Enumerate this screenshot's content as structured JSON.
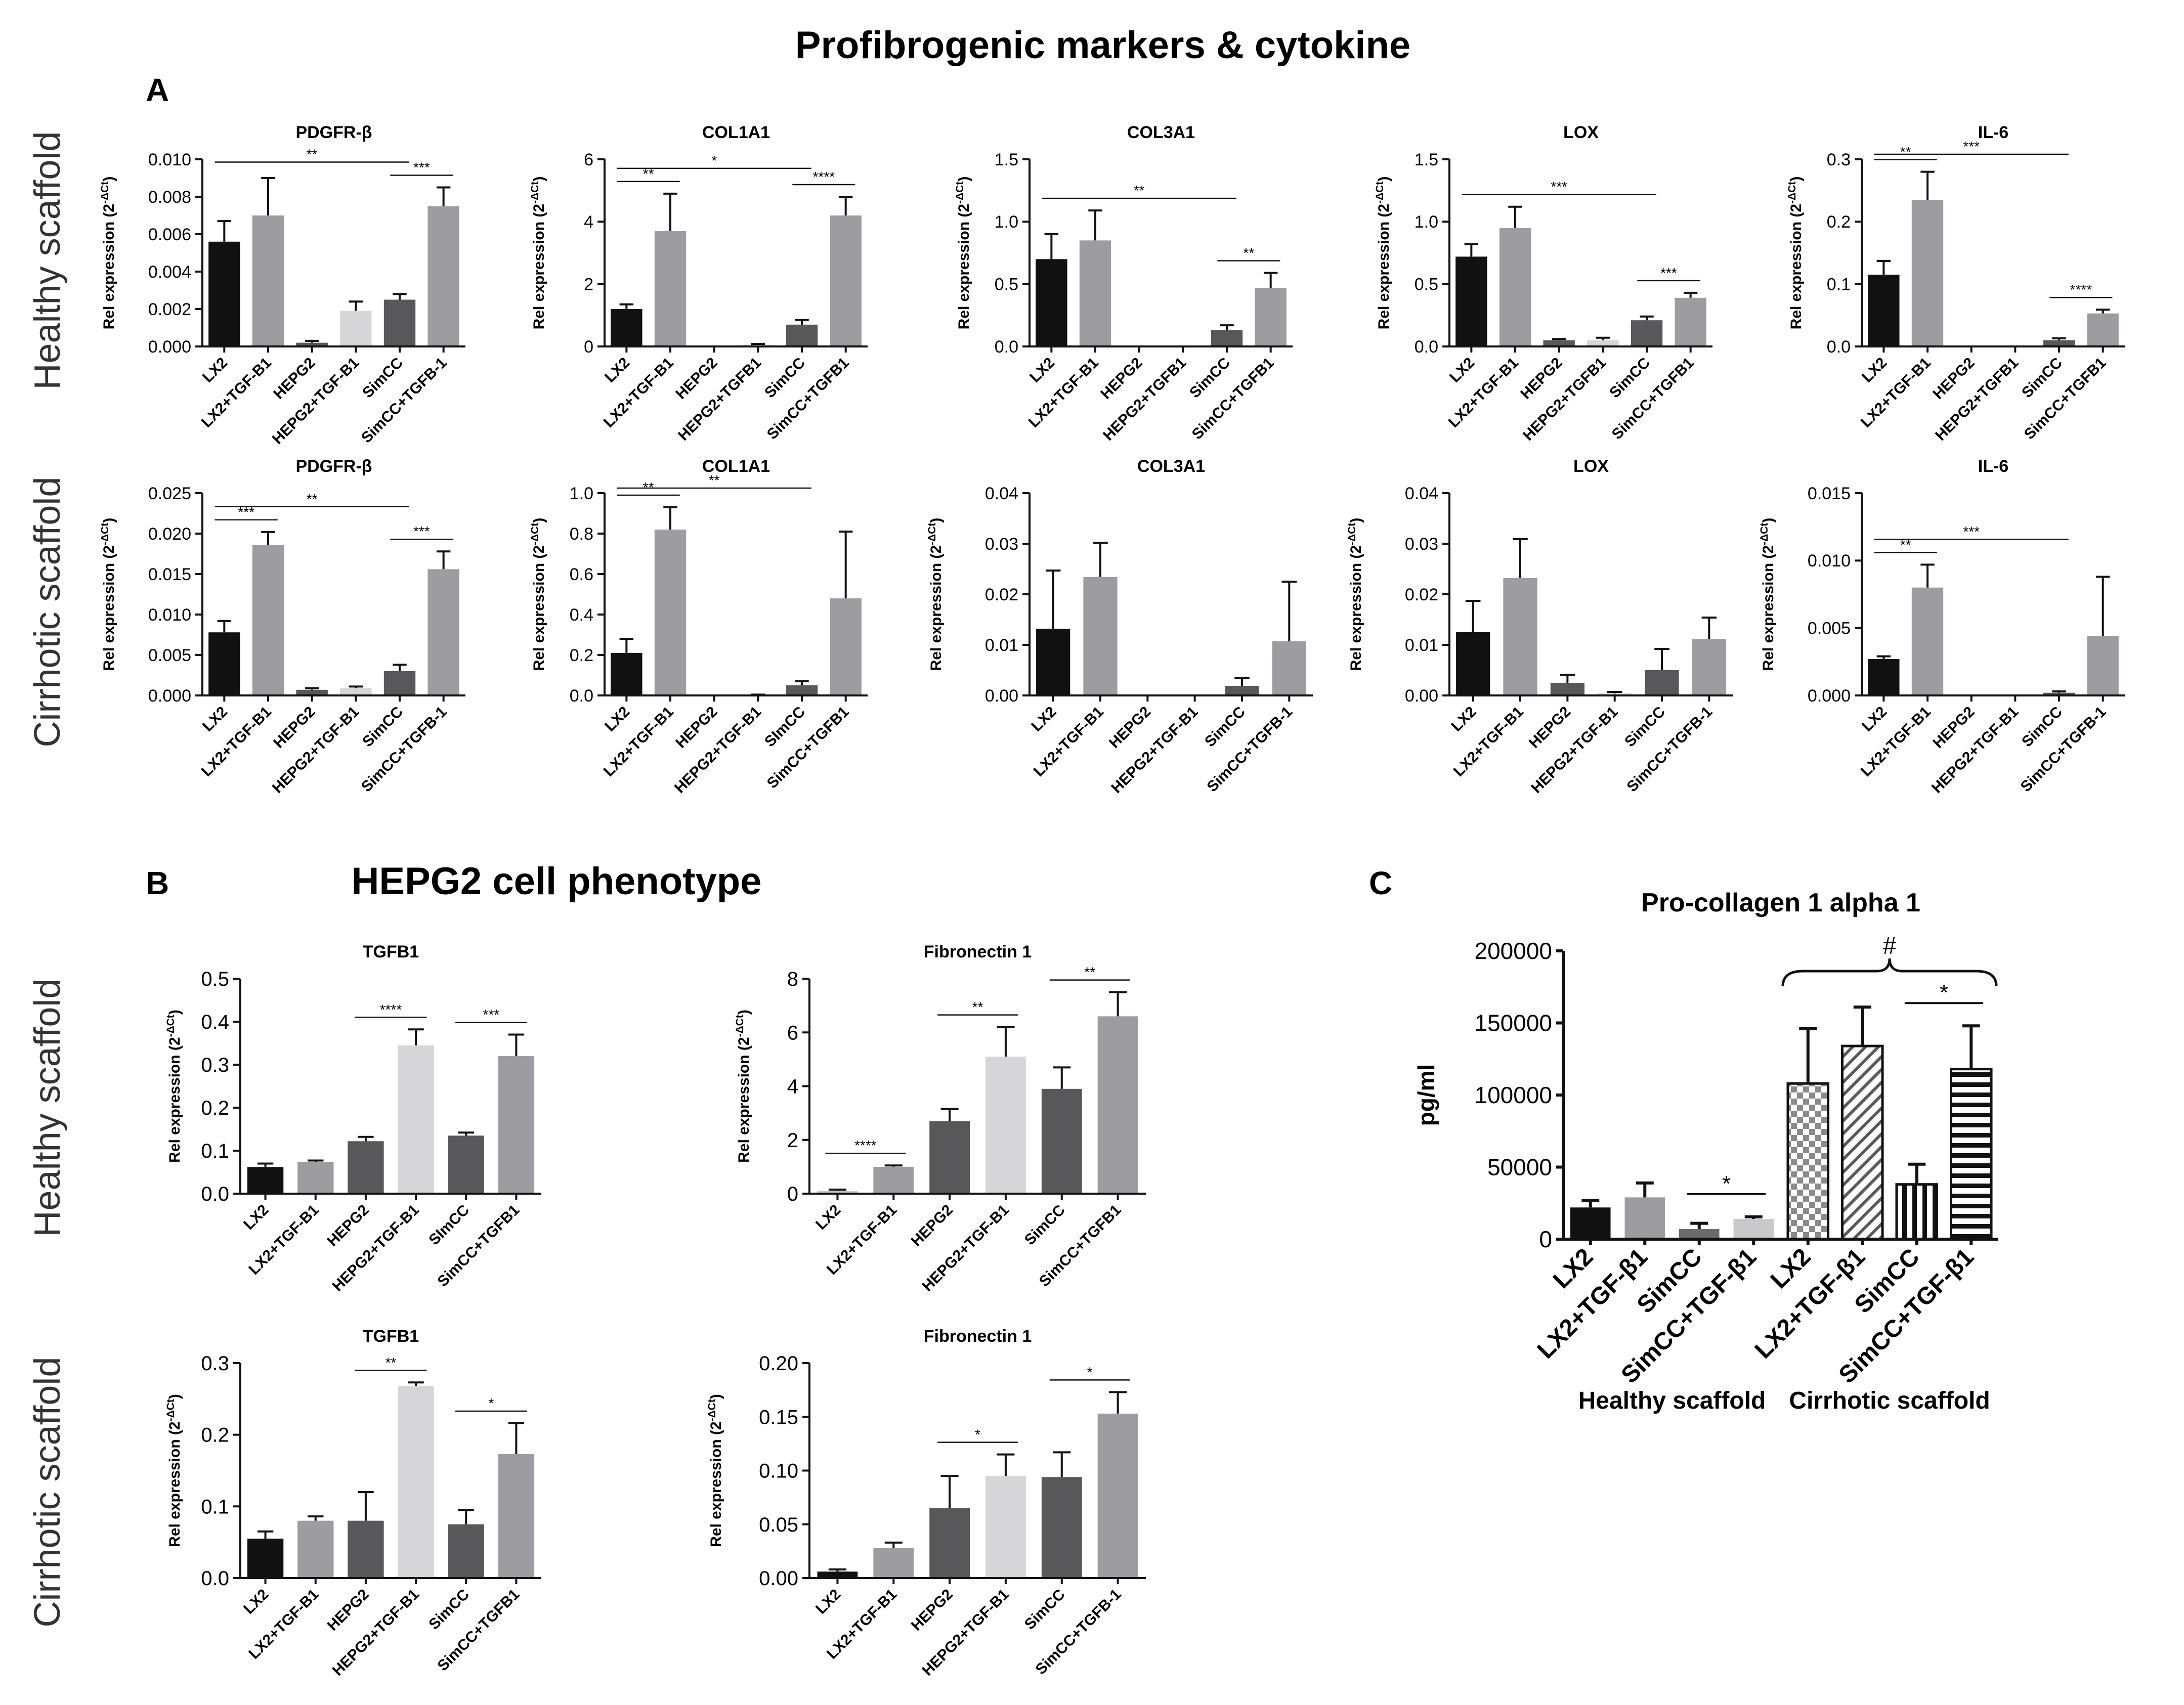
{
  "page_title": "Profibrogenic markers & cytokine",
  "section_b_title": "HEPG2 cell phenotype",
  "panel_letters": {
    "a": "A",
    "b": "B",
    "c": "C"
  },
  "row_labels": {
    "healthy": "Healthy scaffold",
    "cirrhotic": "Cirrhotic scaffold"
  },
  "group_labels": {
    "healthy": "Healthy scaffold",
    "cirrhotic": "Cirrhotic scaffold"
  },
  "colors": {
    "black": "#111111",
    "grey": "#9d9da1",
    "dark": "#58585b",
    "light": "#d6d6d8",
    "faint": "#c9c9cb"
  },
  "chart_data": [
    {
      "id": "A_h_pdgfrb",
      "type": "bar",
      "title": "PDGFR-β",
      "ylabel": "Rel expression (2^-ΔCt)",
      "ylim": [
        0,
        0.01
      ],
      "yticks": [
        "0.000",
        "0.002",
        "0.004",
        "0.006",
        "0.008",
        "0.010"
      ],
      "categories": [
        "LX2",
        "LX2+TGF-B1",
        "HEPG2",
        "HEPG2+TGF-B1",
        "SimCC",
        "SimCC+TGFB-1"
      ],
      "values": [
        0.0056,
        0.007,
        0.0002,
        0.0019,
        0.0025,
        0.0075
      ],
      "errors": [
        0.0011,
        0.002,
        0.0001,
        0.0005,
        0.0003,
        0.001
      ],
      "colors": [
        "#111111",
        "#9d9da1",
        "#58585b",
        "#d6d6d8",
        "#58585b",
        "#9d9da1"
      ],
      "sig": [
        {
          "from": 0,
          "to": 4,
          "label": "**"
        },
        {
          "from": 4,
          "to": 5,
          "label": "***"
        }
      ]
    },
    {
      "id": "A_h_col1a1",
      "type": "bar",
      "title": "COL1A1",
      "ylabel": "Rel expression (2^-ΔCt)",
      "ylim": [
        0,
        6
      ],
      "yticks": [
        "0",
        "2",
        "4",
        "6"
      ],
      "categories": [
        "LX2",
        "LX2+TGF-B1",
        "HEPG2",
        "HEPG2+TGFB1",
        "SimCC",
        "SimCC+TGFB1"
      ],
      "values": [
        1.2,
        3.7,
        0,
        0.05,
        0.7,
        4.2
      ],
      "errors": [
        0.15,
        1.2,
        0,
        0.03,
        0.15,
        0.6
      ],
      "colors": [
        "#111111",
        "#9d9da1",
        "#58585b",
        "#d6d6d8",
        "#58585b",
        "#9d9da1"
      ],
      "sig": [
        {
          "from": 0,
          "to": 1,
          "label": "**"
        },
        {
          "from": 0,
          "to": 4,
          "label": "*"
        },
        {
          "from": 4,
          "to": 5,
          "label": "****"
        }
      ]
    },
    {
      "id": "A_h_col3a1",
      "type": "bar",
      "title": "COL3A1",
      "ylabel": "Rel expression (2^-ΔCt)",
      "ylim": [
        0,
        1.5
      ],
      "yticks": [
        "0.0",
        "0.5",
        "1.0",
        "1.5"
      ],
      "categories": [
        "LX2",
        "LX2+TGF-B1",
        "HEPG2",
        "HEPG2+TGFB1",
        "SimCC",
        "SimCC+TGFB1"
      ],
      "values": [
        0.7,
        0.85,
        0,
        0,
        0.13,
        0.47
      ],
      "errors": [
        0.2,
        0.24,
        0,
        0,
        0.04,
        0.12
      ],
      "colors": [
        "#111111",
        "#9d9da1",
        "#58585b",
        "#d6d6d8",
        "#58585b",
        "#9d9da1"
      ],
      "sig": [
        {
          "from": 0,
          "to": 4,
          "label": "**"
        },
        {
          "from": 4,
          "to": 5,
          "label": "**"
        }
      ]
    },
    {
      "id": "A_h_lox",
      "type": "bar",
      "title": "LOX",
      "ylabel": "Rel expression (2^-ΔCt)",
      "ylim": [
        0,
        1.5
      ],
      "yticks": [
        "0.0",
        "0.5",
        "1.0",
        "1.5"
      ],
      "categories": [
        "LX2",
        "LX2+TGF-B1",
        "HEPG2",
        "HEPG2+TGFB1",
        "SimCC",
        "SimCC+TGFB1"
      ],
      "values": [
        0.72,
        0.95,
        0.05,
        0.05,
        0.21,
        0.39
      ],
      "errors": [
        0.1,
        0.17,
        0.01,
        0.02,
        0.03,
        0.04
      ],
      "colors": [
        "#111111",
        "#9d9da1",
        "#58585b",
        "#d6d6d8",
        "#58585b",
        "#9d9da1"
      ],
      "sig": [
        {
          "from": 0,
          "to": 4,
          "label": "***"
        },
        {
          "from": 4,
          "to": 5,
          "label": "***"
        }
      ]
    },
    {
      "id": "A_h_il6",
      "type": "bar",
      "title": "IL-6",
      "ylabel": "Rel expression (2^-ΔCt)",
      "ylim": [
        0,
        0.3
      ],
      "yticks": [
        "0.0",
        "0.1",
        "0.2",
        "0.3"
      ],
      "categories": [
        "LX2",
        "LX2+TGF-B1",
        "HEPG2",
        "HEPG2+TGFB1",
        "SimCC",
        "SimCC+TGFB1"
      ],
      "values": [
        0.115,
        0.235,
        0,
        0,
        0.01,
        0.053
      ],
      "errors": [
        0.022,
        0.045,
        0,
        0,
        0.003,
        0.006
      ],
      "colors": [
        "#111111",
        "#9d9da1",
        "#58585b",
        "#d6d6d8",
        "#58585b",
        "#9d9da1"
      ],
      "sig": [
        {
          "from": 0,
          "to": 1,
          "label": "**"
        },
        {
          "from": 0,
          "to": 4,
          "label": "***"
        },
        {
          "from": 4,
          "to": 5,
          "label": "****"
        }
      ]
    },
    {
      "id": "A_c_pdgfrb",
      "type": "bar",
      "title": "PDGFR-β",
      "ylabel": "Rel expression (2^-ΔCt)",
      "ylim": [
        0,
        0.025
      ],
      "yticks": [
        "0.000",
        "0.005",
        "0.010",
        "0.015",
        "0.020",
        "0.025"
      ],
      "categories": [
        "LX2",
        "LX2+TGF-B1",
        "HEPG2",
        "HEPG2+TGF-B1",
        "SimCC",
        "SimCC+TGFB-1"
      ],
      "values": [
        0.0078,
        0.0186,
        0.0007,
        0.0009,
        0.003,
        0.0156
      ],
      "errors": [
        0.0014,
        0.0016,
        0.0002,
        0.0002,
        0.0008,
        0.0022
      ],
      "colors": [
        "#111111",
        "#9d9da1",
        "#58585b",
        "#d6d6d8",
        "#58585b",
        "#9d9da1"
      ],
      "sig": [
        {
          "from": 0,
          "to": 1,
          "label": "***"
        },
        {
          "from": 0,
          "to": 4,
          "label": "**"
        },
        {
          "from": 4,
          "to": 5,
          "label": "***"
        }
      ]
    },
    {
      "id": "A_c_col1a1",
      "type": "bar",
      "title": "COL1A1",
      "ylabel": "Rel expression (2^-ΔCt)",
      "ylim": [
        0,
        1
      ],
      "yticks": [
        "0.0",
        "0.2",
        "0.4",
        "0.6",
        "0.8",
        "1.0"
      ],
      "categories": [
        "LX2",
        "LX2+TGF-B1",
        "HEPG2",
        "HEPG2+TGF-B1",
        "SImCC",
        "SimCC+TGFB1"
      ],
      "values": [
        0.21,
        0.82,
        0,
        0.002,
        0.05,
        0.48
      ],
      "errors": [
        0.07,
        0.11,
        0,
        0.002,
        0.02,
        0.33
      ],
      "colors": [
        "#111111",
        "#9d9da1",
        "#58585b",
        "#d6d6d8",
        "#58585b",
        "#9d9da1"
      ],
      "sig": [
        {
          "from": 0,
          "to": 1,
          "label": "**"
        },
        {
          "from": 0,
          "to": 4,
          "label": "**"
        }
      ]
    },
    {
      "id": "A_c_col3a1",
      "type": "bar",
      "title": "COL3A1",
      "ylabel": "Rel expression (2^-ΔCt)",
      "ylim": [
        0,
        0.04
      ],
      "yticks": [
        "0.00",
        "0.01",
        "0.02",
        "0.03",
        "0.04"
      ],
      "categories": [
        "LX2",
        "LX2+TGF-B1",
        "HEPG2",
        "HEPG2+TGF-B1",
        "SimCC",
        "SimCC+TGFB-1"
      ],
      "values": [
        0.0132,
        0.0234,
        0,
        0,
        0.0019,
        0.0107
      ],
      "errors": [
        0.0115,
        0.0068,
        0,
        0,
        0.0015,
        0.0118
      ],
      "colors": [
        "#111111",
        "#9d9da1",
        "#58585b",
        "#d6d6d8",
        "#58585b",
        "#9d9da1"
      ],
      "sig": []
    },
    {
      "id": "A_c_lox",
      "type": "bar",
      "title": "LOX",
      "ylabel": "Rel expression (2^-ΔCt)",
      "ylim": [
        0,
        0.04
      ],
      "yticks": [
        "0.00",
        "0.01",
        "0.02",
        "0.03",
        "0.04"
      ],
      "categories": [
        "LX2",
        "LX2+TGF-B1",
        "HEPG2",
        "HEPG2+TGF-B1",
        "SimCC",
        "SimCC+TGFB-1"
      ],
      "values": [
        0.0125,
        0.0232,
        0.0025,
        0.0004,
        0.005,
        0.0112
      ],
      "errors": [
        0.0062,
        0.0077,
        0.0016,
        0.0003,
        0.0042,
        0.0042
      ],
      "colors": [
        "#111111",
        "#9d9da1",
        "#58585b",
        "#d6d6d8",
        "#58585b",
        "#9d9da1"
      ],
      "sig": []
    },
    {
      "id": "A_c_il6",
      "type": "bar",
      "title": "IL-6",
      "ylabel": "Rel expression (2^-ΔCt)",
      "ylim": [
        0,
        0.015
      ],
      "yticks": [
        "0.000",
        "0.005",
        "0.010",
        "0.015"
      ],
      "categories": [
        "LX2",
        "LX2+TGF-B1",
        "HEPG2",
        "HEPG2+TGF-B1",
        "SimCC",
        "SimCC+TGFB-1"
      ],
      "values": [
        0.0027,
        0.008,
        0,
        0,
        0.0002,
        0.0044
      ],
      "errors": [
        0.0002,
        0.0017,
        0,
        0,
        0.0001,
        0.0044
      ],
      "colors": [
        "#111111",
        "#9d9da1",
        "#58585b",
        "#d6d6d8",
        "#58585b",
        "#9d9da1"
      ],
      "sig": [
        {
          "from": 0,
          "to": 1,
          "label": "**"
        },
        {
          "from": 0,
          "to": 4,
          "label": "***"
        }
      ]
    },
    {
      "id": "B_h_tgfb1",
      "type": "bar",
      "title": "TGFB1",
      "ylabel": "Rel expression (2^-ΔCt)",
      "ylim": [
        0,
        0.5
      ],
      "yticks": [
        "0.0",
        "0.1",
        "0.2",
        "0.3",
        "0.4",
        "0.5"
      ],
      "categories": [
        "LX2",
        "LX2+TGF-B1",
        "HEPG2",
        "HEPG2+TGF-B1",
        "SImCC",
        "SimCC+TGFB1"
      ],
      "values": [
        0.062,
        0.074,
        0.122,
        0.345,
        0.135,
        0.32
      ],
      "errors": [
        0.008,
        0.003,
        0.01,
        0.037,
        0.007,
        0.05
      ],
      "colors": [
        "#111111",
        "#9d9da1",
        "#58585b",
        "#d6d6d8",
        "#58585b",
        "#9d9da1"
      ],
      "sig": [
        {
          "from": 2,
          "to": 3,
          "label": "****"
        },
        {
          "from": 4,
          "to": 5,
          "label": "***"
        }
      ]
    },
    {
      "id": "B_h_fn1",
      "type": "bar",
      "title": "Fibronectin 1",
      "ylabel": "Rel expression (2^-ΔCt)",
      "ylim": [
        0,
        8
      ],
      "yticks": [
        "0",
        "2",
        "4",
        "6",
        "8"
      ],
      "categories": [
        "LX2",
        "LX2+TGF-B1",
        "HEPG2",
        "HEPG2+TGF-B1",
        "SimCC",
        "SimCC+TGFB1"
      ],
      "values": [
        0.1,
        1.0,
        2.7,
        5.1,
        3.9,
        6.6
      ],
      "errors": [
        0.05,
        0.05,
        0.45,
        1.1,
        0.8,
        0.9
      ],
      "colors": [
        "#c9c9cb",
        "#9d9da1",
        "#58585b",
        "#d6d6d8",
        "#58585b",
        "#9d9da1"
      ],
      "sig": [
        {
          "from": 0,
          "to": 1,
          "label": "****"
        },
        {
          "from": 2,
          "to": 3,
          "label": "**"
        },
        {
          "from": 4,
          "to": 5,
          "label": "**"
        }
      ]
    },
    {
      "id": "B_c_tgfb1",
      "type": "bar",
      "title": "TGFB1",
      "ylabel": "Rel expression (2^-ΔCt)",
      "ylim": [
        0,
        0.3
      ],
      "yticks": [
        "0.0",
        "0.1",
        "0.2",
        "0.3"
      ],
      "categories": [
        "LX2",
        "LX2+TGF-B1",
        "HEPG2",
        "HEPG2+TGF-B1",
        "SimCC",
        "SimCC+TGFB1"
      ],
      "values": [
        0.055,
        0.08,
        0.08,
        0.268,
        0.075,
        0.173
      ],
      "errors": [
        0.01,
        0.006,
        0.04,
        0.005,
        0.02,
        0.043
      ],
      "colors": [
        "#111111",
        "#9d9da1",
        "#58585b",
        "#d6d6d8",
        "#58585b",
        "#9d9da1"
      ],
      "sig": [
        {
          "from": 2,
          "to": 3,
          "label": "**"
        },
        {
          "from": 4,
          "to": 5,
          "label": "*"
        }
      ]
    },
    {
      "id": "B_c_fn1",
      "type": "bar",
      "title": "Fibronectin 1",
      "ylabel": "Rel expression (2^-ΔCt)",
      "ylim": [
        0,
        0.2
      ],
      "yticks": [
        "0.00",
        "0.05",
        "0.10",
        "0.15",
        "0.20"
      ],
      "categories": [
        "LX2",
        "LX2+TGF-B1",
        "HEPG2",
        "HEPG2+TGF-B1",
        "SimCC",
        "SimCC+TGFB-1"
      ],
      "values": [
        0.006,
        0.028,
        0.065,
        0.095,
        0.094,
        0.153
      ],
      "errors": [
        0.002,
        0.005,
        0.03,
        0.02,
        0.023,
        0.02
      ],
      "colors": [
        "#111111",
        "#9d9da1",
        "#58585b",
        "#d6d6d8",
        "#58585b",
        "#9d9da1"
      ],
      "sig": [
        {
          "from": 2,
          "to": 3,
          "label": "*"
        },
        {
          "from": 4,
          "to": 5,
          "label": "*"
        }
      ]
    },
    {
      "id": "C_procol",
      "type": "bar",
      "title": "Pro-collagen 1 alpha 1",
      "ylabel": "pg/ml",
      "ylim": [
        0,
        200000
      ],
      "yticks": [
        "0",
        "50000",
        "100000",
        "150000",
        "200000"
      ],
      "categories": [
        "LX2",
        "LX2+TGF-β1",
        "SimCC",
        "SimCC+TGF-β1",
        "LX2",
        "LX2+TGF-β1",
        "SimCC",
        "SimCC+TGF-β1"
      ],
      "values": [
        22000,
        29000,
        7000,
        14000,
        108000,
        134000,
        38000,
        118000
      ],
      "errors": [
        5000,
        10000,
        4000,
        1500,
        38000,
        27000,
        14000,
        30000
      ],
      "styles": [
        "black",
        "grey",
        "dark",
        "light",
        "checker",
        "diagonal",
        "vertical",
        "horizontal"
      ],
      "groups": [
        "Healthy scaffold",
        "Healthy scaffold",
        "Healthy scaffold",
        "Healthy scaffold",
        "Cirrhotic scaffold",
        "Cirrhotic scaffold",
        "Cirrhotic scaffold",
        "Cirrhotic scaffold"
      ],
      "sig": [
        {
          "from": 2,
          "to": 3,
          "label": "*"
        },
        {
          "from": 6,
          "to": 7,
          "label": "*"
        }
      ],
      "bracket": {
        "from": 4,
        "to": 7,
        "label": "#"
      }
    }
  ]
}
